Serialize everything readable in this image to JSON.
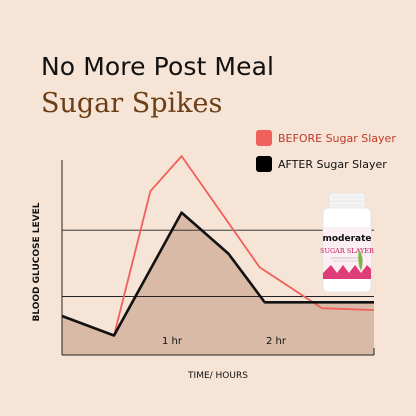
{
  "headline": {
    "line1": "No More Post Meal",
    "line2": "Sugar Spikes"
  },
  "legend": {
    "before_label": "BEFORE Sugar Slayer",
    "after_label": "AFTER Sugar Slayer",
    "before_color": "#f0605a",
    "after_color": "#000000"
  },
  "product": {
    "brand": "moderate",
    "name": "SUGAR SLAYER"
  },
  "chart_data": {
    "type": "line",
    "xlabel": "TIME/ HOURS",
    "ylabel": "BLOOD GLUCOSE LEVEL",
    "x_ticks": [
      {
        "x": 1,
        "label": "1 hr"
      },
      {
        "x": 2,
        "label": "2 hr"
      }
    ],
    "xlim": [
      0,
      3
    ],
    "ylim": [
      0,
      100
    ],
    "reference_lines_y": [
      30,
      64
    ],
    "series": [
      {
        "name": "BEFORE Sugar Slayer",
        "color": "#f0605a",
        "points": [
          [
            0,
            20
          ],
          [
            0.5,
            10
          ],
          [
            0.85,
            84
          ],
          [
            1.15,
            102
          ],
          [
            1.9,
            45
          ],
          [
            2.5,
            24
          ],
          [
            3,
            23
          ]
        ],
        "fill": false
      },
      {
        "name": "AFTER Sugar Slayer",
        "color": "#111111",
        "points": [
          [
            0,
            20
          ],
          [
            0.5,
            10
          ],
          [
            1.15,
            73
          ],
          [
            1.6,
            52
          ],
          [
            1.95,
            27
          ],
          [
            3,
            27
          ]
        ],
        "fill": true,
        "fill_color": "#d8baa6"
      }
    ]
  }
}
